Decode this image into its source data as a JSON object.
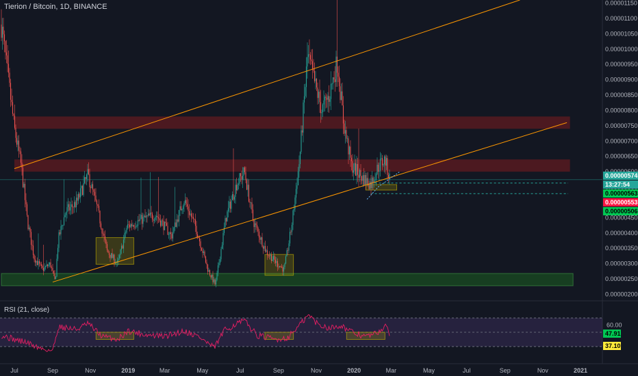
{
  "header": {
    "title": "Tierion / Bitcoin, 1D, BINANCE"
  },
  "rsi": {
    "title": "RSI (21, close)"
  },
  "colors": {
    "background": "#131722",
    "up": "#26a69a",
    "down": "#ef5350",
    "rsi_line": "#e91e63",
    "rsi_band": "#7e57c2",
    "channel": "#ff9800",
    "zone_red": "#b71c1c",
    "zone_green": "#1b5e20",
    "zone_yellow": "#c8b400",
    "label_green": "#00c853",
    "label_red": "#ff1744",
    "label_yellow": "#ffeb3b"
  },
  "chart_data": {
    "type": "candlestick",
    "title": "Tierion / Bitcoin, 1D, BINANCE",
    "price_axis": {
      "ticks": [
        "0.00001150",
        "0.00001100",
        "0.00001050",
        "0.00001000",
        "0.00000950",
        "0.00000900",
        "0.00000850",
        "0.00000800",
        "0.00000750",
        "0.00000700",
        "0.00000650",
        "0.00000600",
        "0.00000550",
        "0.00000500",
        "0.00000450",
        "0.00000400",
        "0.00000350",
        "0.00000300",
        "0.00000250",
        "0.00000200"
      ],
      "ylim": [
        1.9e-06,
        1.16e-05
      ]
    },
    "time_axis": {
      "ticks": [
        "Jul",
        "Sep",
        "Nov",
        "2019",
        "Mar",
        "May",
        "Jul",
        "Sep",
        "Nov",
        "2020",
        "Mar",
        "May",
        "Jul",
        "Sep",
        "Nov",
        "2021"
      ]
    },
    "price_labels": [
      {
        "text": "0.00000574",
        "value": 5.74e-06,
        "kind": "current"
      },
      {
        "text": "13:27:54",
        "value": 5.68e-06,
        "kind": "countdown"
      },
      {
        "text": "0.00000563",
        "value": 5.63e-06,
        "kind": "green"
      },
      {
        "text": "0.00000553",
        "value": 5.53e-06,
        "kind": "red"
      },
      {
        "text": "0.00000506",
        "value": 5.06e-06,
        "kind": "green"
      }
    ],
    "price_path": [
      [
        "Jun 10, 2018",
        1.08e-05
      ],
      [
        "Jun 20, 2018",
        9.2e-06
      ],
      [
        "Jul 1, 2018",
        7.4e-06
      ],
      [
        "Jul 12, 2018",
        6.2e-06
      ],
      [
        "Jul 22, 2018",
        4.4e-06
      ],
      [
        "Aug 2, 2018",
        3.2e-06
      ],
      [
        "Aug 15, 2018",
        2.8e-06
      ],
      [
        "Aug 28, 2018",
        3e-06
      ],
      [
        "Sep 5, 2018",
        2.4e-06
      ],
      [
        "Sep 10, 2018",
        3.8e-06
      ],
      [
        "Sep 22, 2018",
        4.7e-06
      ],
      [
        "Oct 10, 2018",
        5e-06
      ],
      [
        "Oct 28, 2018",
        5.9e-06
      ],
      [
        "Nov 12, 2018",
        4.8e-06
      ],
      [
        "Nov 28, 2018",
        3.4e-06
      ],
      [
        "Dec 15, 2018",
        3e-06
      ],
      [
        "Dec 30, 2018",
        4.2e-06
      ],
      [
        "Jan 18, 2019",
        4.4e-06
      ],
      [
        "Feb 15, 2019",
        4.6e-06
      ],
      [
        "Mar 12, 2019",
        3.9e-06
      ],
      [
        "Apr 1, 2019",
        5.1e-06
      ],
      [
        "Apr 20, 2019",
        4.2e-06
      ],
      [
        "May 10, 2019",
        2.8e-06
      ],
      [
        "May 22, 2019",
        2.3e-06
      ],
      [
        "Jun 8, 2019",
        4.5e-06
      ],
      [
        "Jun 25, 2019",
        5.6e-06
      ],
      [
        "Jul 8, 2019",
        6e-06
      ],
      [
        "Jul 22, 2019",
        4.4e-06
      ],
      [
        "Aug 12, 2019",
        3.4e-06
      ],
      [
        "Aug 30, 2019",
        3e-06
      ],
      [
        "Sep 10, 2019",
        2.8e-06
      ],
      [
        "Sep 22, 2019",
        4.2e-06
      ],
      [
        "Oct 5, 2019",
        6.4e-06
      ],
      [
        "Oct 18, 2019",
        9.8e-06
      ],
      [
        "Oct 28, 2019",
        9e-06
      ],
      [
        "Nov 10, 2019",
        8e-06
      ],
      [
        "Nov 22, 2019",
        8.5e-06
      ],
      [
        "Dec 5, 2019",
        9.6e-06
      ],
      [
        "Dec 15, 2019",
        7.6e-06
      ],
      [
        "Dec 28, 2019",
        6.2e-06
      ],
      [
        "Jan 15, 2020",
        5.8e-06
      ],
      [
        "Jan 28, 2020",
        5.6e-06
      ],
      [
        "Feb 10, 2020",
        6.2e-06
      ],
      [
        "Feb 20, 2020",
        6.4e-06
      ],
      [
        "Feb 28, 2020",
        5.74e-06
      ]
    ],
    "rsi_axis": {
      "ticks": [
        "60.00"
      ],
      "ylim": [
        8,
        92
      ]
    },
    "rsi_labels": [
      {
        "text": "47.91",
        "value": 47.91,
        "kind": "green"
      },
      {
        "text": "37.10",
        "value": 37.1,
        "kind": "yellow"
      }
    ],
    "rsi_path": [
      [
        "Jun 10, 2018",
        46
      ],
      [
        "Jul 1, 2018",
        40
      ],
      [
        "Jul 20, 2018",
        36
      ],
      [
        "Aug 10, 2018",
        28
      ],
      [
        "Sep 1, 2018",
        24
      ],
      [
        "Sep 10, 2018",
        58
      ],
      [
        "Oct 10, 2018",
        54
      ],
      [
        "Oct 28, 2018",
        62
      ],
      [
        "Nov 20, 2018",
        44
      ],
      [
        "Dec 15, 2018",
        40
      ],
      [
        "Jan 1, 2019",
        52
      ],
      [
        "Feb 1, 2019",
        46
      ],
      [
        "Mar 1, 2019",
        44
      ],
      [
        "Apr 1, 2019",
        52
      ],
      [
        "Apr 25, 2019",
        44
      ],
      [
        "May 20, 2019",
        28
      ],
      [
        "Jun 5, 2019",
        52
      ],
      [
        "Jun 25, 2019",
        62
      ],
      [
        "Jul 8, 2019",
        66
      ],
      [
        "Jul 28, 2019",
        46
      ],
      [
        "Aug 25, 2019",
        40
      ],
      [
        "Sep 15, 2019",
        42
      ],
      [
        "Oct 5, 2019",
        60
      ],
      [
        "Oct 20, 2019",
        74
      ],
      [
        "Nov 5, 2019",
        60
      ],
      [
        "Nov 25, 2019",
        56
      ],
      [
        "Dec 10, 2019",
        60
      ],
      [
        "Dec 28, 2019",
        50
      ],
      [
        "Jan 20, 2020",
        44
      ],
      [
        "Feb 5, 2020",
        48
      ],
      [
        "Feb 20, 2020",
        58
      ],
      [
        "Feb 28, 2020",
        48
      ]
    ],
    "annotations": {
      "channel_lines": [
        {
          "from": [
            "Jul 1, 2018",
            6.1e-06
          ],
          "to": [
            "Sep 25, 2020",
            1.16e-05
          ]
        },
        {
          "from": [
            "Sep 1, 2018",
            2.4e-06
          ],
          "to": [
            "Dec 10, 2020",
            7.6e-06
          ]
        }
      ],
      "resistance_zones": [
        {
          "from": "Jul 1, 2018",
          "to": "Dec 15, 2020",
          "low": 7.4e-06,
          "high": 7.8e-06
        },
        {
          "from": "Jul 1, 2018",
          "to": "Dec 15, 2020",
          "low": 6e-06,
          "high": 6.4e-06
        }
      ],
      "support_zones": [
        {
          "from": "Jun 10, 2018",
          "to": "Dec 20, 2020",
          "low": 2.28e-06,
          "high": 2.68e-06
        }
      ],
      "accumulation_boxes": [
        {
          "from": "Nov 10, 2018",
          "to": "Jan 10, 2019",
          "low": 2.98e-06,
          "high": 3.85e-06
        },
        {
          "from": "Aug 10, 2019",
          "to": "Sep 25, 2019",
          "low": 2.62e-06,
          "high": 3.3e-06
        },
        {
          "from": "Jan 20, 2020",
          "to": "Mar 10, 2020",
          "low": 5.4e-06,
          "high": 5.58e-06
        }
      ],
      "rsi_boxes": [
        {
          "from": "Nov 10, 2018",
          "to": "Jan 10, 2019",
          "low": 40,
          "high": 50
        },
        {
          "from": "Aug 10, 2019",
          "to": "Sep 25, 2019",
          "low": 40,
          "high": 50
        },
        {
          "from": "Dec 20, 2019",
          "to": "Feb 20, 2020",
          "low": 40,
          "high": 50
        }
      ]
    }
  }
}
